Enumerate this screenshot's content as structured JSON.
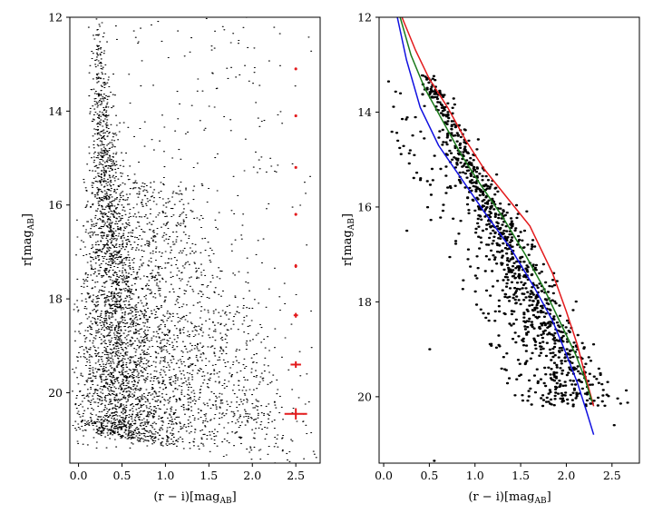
{
  "chart_data": [
    {
      "type": "scatter",
      "panel": "left",
      "title": "",
      "xlabel": "(r − i)[mag",
      "xlabel_sub": "AB",
      "xlabel_tail": "]",
      "ylabel": "r[mag",
      "ylabel_sub": "AB",
      "ylabel_tail": "]",
      "xlim": [
        -0.1,
        2.78
      ],
      "ylim": [
        21.5,
        12
      ],
      "y_inverted": true,
      "xticks": [
        0.0,
        0.5,
        1.0,
        1.5,
        2.0,
        2.5
      ],
      "xtick_labels": [
        "0.0",
        "0.5",
        "1.0",
        "1.5",
        "2.0",
        "2.5"
      ],
      "yticks": [
        12,
        14,
        16,
        18,
        20
      ],
      "ytick_labels": [
        "12",
        "14",
        "16",
        "18",
        "20"
      ],
      "grid": false,
      "point_color": "#000000",
      "point_count_approx": 60000,
      "density_description": "dense black point cloud; main sequence from (0.1,12) broadening to (0.1–1.8, 20.8), turnoff band near r≈18–21",
      "error_bars": {
        "color": "#e31a1c",
        "x": [
          2.5,
          2.5,
          2.5,
          2.5,
          2.5,
          2.5,
          2.5,
          2.5
        ],
        "y": [
          13.1,
          14.1,
          15.2,
          16.2,
          17.3,
          18.35,
          19.4,
          20.45
        ],
        "xerr": [
          0.01,
          0.01,
          0.01,
          0.015,
          0.015,
          0.025,
          0.06,
          0.13
        ],
        "yerr": [
          0.02,
          0.02,
          0.02,
          0.03,
          0.04,
          0.05,
          0.07,
          0.12
        ]
      }
    },
    {
      "type": "scatter",
      "panel": "right",
      "title": "",
      "xlabel": "(r − i)[mag",
      "xlabel_sub": "AB",
      "xlabel_tail": "]",
      "ylabel": "r[mag",
      "ylabel_sub": "AB",
      "ylabel_tail": "]",
      "xlim": [
        -0.05,
        2.8
      ],
      "ylim": [
        21.4,
        12
      ],
      "y_inverted": true,
      "xticks": [
        0.0,
        0.5,
        1.0,
        1.5,
        2.0,
        2.5
      ],
      "xtick_labels": [
        "0.0",
        "0.5",
        "1.0",
        "1.5",
        "2.0",
        "2.5"
      ],
      "yticks": [
        12,
        14,
        16,
        18,
        20
      ],
      "ytick_labels": [
        "12",
        "14",
        "16",
        "18",
        "20"
      ],
      "grid": false,
      "point_color": "#000000",
      "point_count_approx": 1200,
      "outlier_points": [
        {
          "x": 0.55,
          "y": 21.35
        },
        {
          "x": 2.52,
          "y": 20.6
        },
        {
          "x": 0.25,
          "y": 16.5
        },
        {
          "x": 0.5,
          "y": 19.0
        }
      ],
      "series": [
        {
          "color": "#e31a1c",
          "x": [
            0.2,
            0.35,
            0.5,
            0.7,
            0.9,
            1.1,
            1.35,
            1.6,
            1.85,
            2.0,
            2.12,
            2.2,
            2.3
          ],
          "y": [
            12.0,
            12.7,
            13.3,
            13.9,
            14.6,
            15.2,
            15.8,
            16.4,
            17.4,
            18.2,
            18.9,
            19.5,
            20.2
          ]
        },
        {
          "color": "#1a7a1a",
          "x": [
            0.18,
            0.3,
            0.45,
            0.65,
            0.85,
            1.05,
            1.3,
            1.55,
            1.75,
            1.95,
            2.1,
            2.2,
            2.28
          ],
          "y": [
            12.0,
            12.8,
            13.5,
            14.2,
            14.9,
            15.5,
            16.2,
            17.0,
            17.7,
            18.5,
            19.1,
            19.6,
            20.1
          ]
        },
        {
          "color": "#1010e0",
          "x": [
            0.15,
            0.25,
            0.4,
            0.6,
            0.85,
            1.1,
            1.4,
            1.65,
            1.85,
            2.0,
            2.12,
            2.22,
            2.3
          ],
          "y": [
            12.0,
            12.9,
            13.9,
            14.7,
            15.4,
            16.1,
            16.9,
            17.7,
            18.4,
            19.1,
            19.7,
            20.3,
            20.8
          ]
        }
      ]
    }
  ]
}
